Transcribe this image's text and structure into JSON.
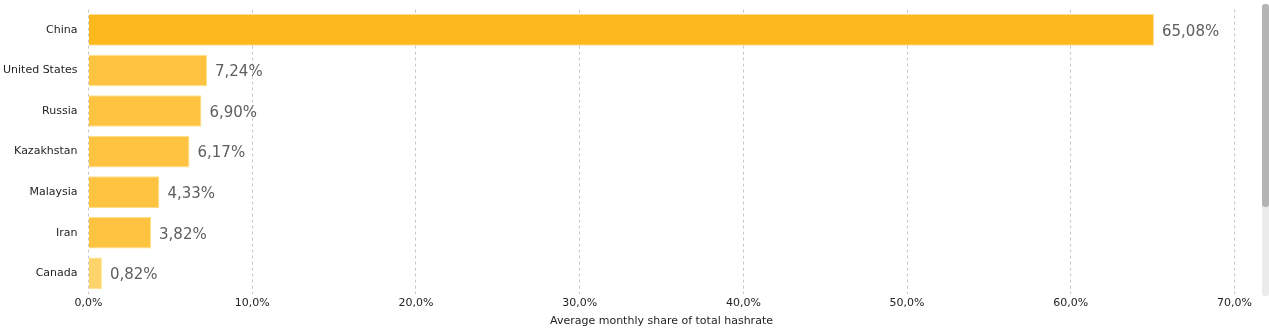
{
  "chart_data": {
    "type": "bar",
    "orientation": "horizontal",
    "xlabel": "Average monthly share of total hashrate",
    "categories": [
      "China",
      "United States",
      "Russia",
      "Kazakhstan",
      "Malaysia",
      "Iran",
      "Canada"
    ],
    "values": [
      65.08,
      7.24,
      6.9,
      6.17,
      4.33,
      3.82,
      0.82
    ],
    "colors": [
      "#fdb81e",
      "#ffc342",
      "#ffc342",
      "#ffc342",
      "#ffc342",
      "#ffc342",
      "#fed46a"
    ],
    "value_labels": [
      "65,08%",
      "7,24%",
      "6,90%",
      "6,17%",
      "4,33%",
      "3,82%",
      "0,82%"
    ],
    "xlim": [
      0,
      70
    ],
    "xticks": [
      {
        "value": 0,
        "label": "0,0%"
      },
      {
        "value": 10,
        "label": "10,0%"
      },
      {
        "value": 20,
        "label": "20,0%"
      },
      {
        "value": 30,
        "label": "30,0%"
      },
      {
        "value": 40,
        "label": "40,0%"
      },
      {
        "value": 50,
        "label": "50,0%"
      },
      {
        "value": 60,
        "label": "60,0%"
      },
      {
        "value": 70,
        "label": "70,0%"
      }
    ],
    "grid": "x",
    "legend": false
  }
}
